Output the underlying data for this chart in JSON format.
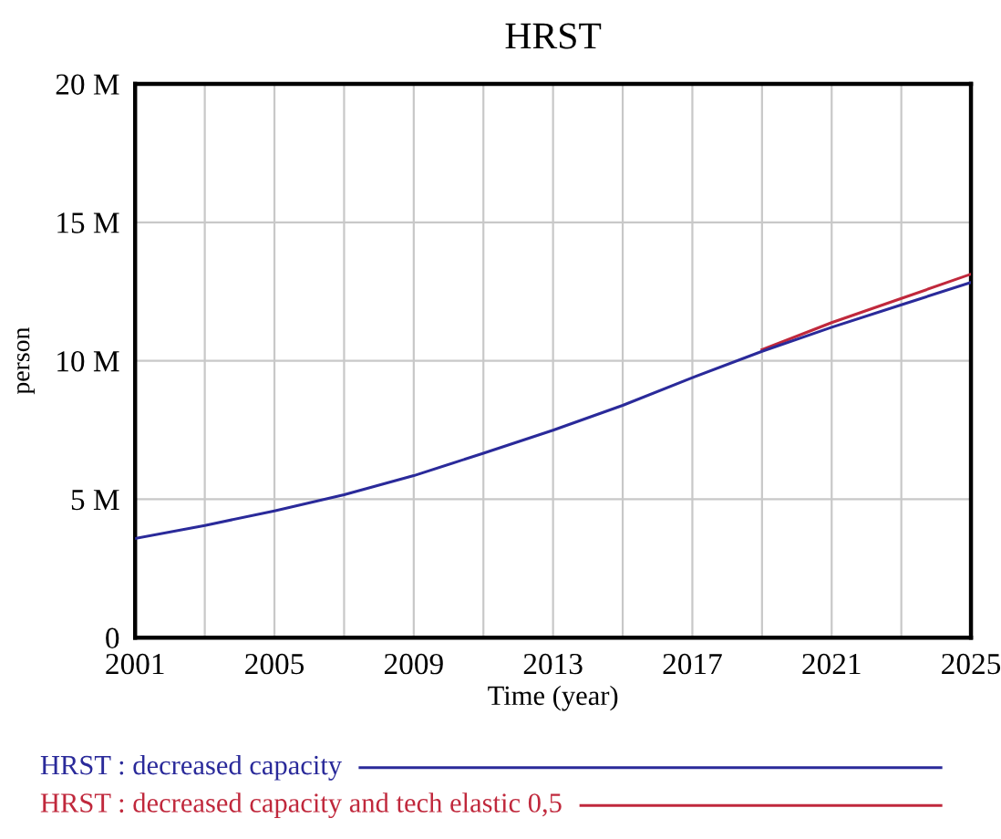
{
  "chart_data": {
    "type": "line",
    "title": "HRST",
    "xlabel": "Time (year)",
    "ylabel": "person",
    "x": [
      2001,
      2003,
      2005,
      2007,
      2009,
      2011,
      2013,
      2015,
      2017,
      2019,
      2021,
      2023,
      2025
    ],
    "series": [
      {
        "name": "HRST : decreased capacity",
        "color": "#2a2a9a",
        "values": [
          3580000,
          4050000,
          4580000,
          5160000,
          5850000,
          6660000,
          7490000,
          8390000,
          9390000,
          10340000,
          11210000,
          12020000,
          12830000
        ]
      },
      {
        "name": "HRST : decreased capacity and tech elastic 0,5",
        "color": "#c0283c",
        "values": [
          null,
          null,
          null,
          null,
          null,
          null,
          null,
          null,
          null,
          10400000,
          11380000,
          12250000,
          13130000
        ]
      }
    ],
    "xlim": [
      2001,
      2025
    ],
    "xticks": [
      2001,
      {
        "value": 2003,
        "label": null
      },
      2005,
      {
        "value": 2007,
        "label": null
      },
      2009,
      {
        "value": 2011,
        "label": null
      },
      2013,
      {
        "value": 2015,
        "label": null
      },
      2017,
      {
        "value": 2019,
        "label": null
      },
      2021,
      {
        "value": 2023,
        "label": null
      },
      2025
    ],
    "ylim": [
      0,
      20000000
    ],
    "yticks": [
      {
        "value": 0,
        "label": "0"
      },
      {
        "value": 5000000,
        "label": "5 M"
      },
      {
        "value": 10000000,
        "label": "10 M"
      },
      {
        "value": 15000000,
        "label": "15 M"
      },
      {
        "value": 20000000,
        "label": "20 M"
      }
    ],
    "grid": true,
    "legend": "bottom",
    "marker": "none",
    "line_style": "solid"
  }
}
